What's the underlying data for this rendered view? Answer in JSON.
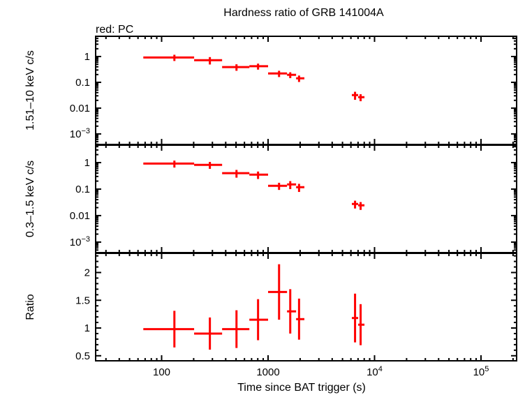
{
  "chart_data": {
    "type": "scatter",
    "title": "Hardness ratio of GRB 141004A",
    "subtitle": "red: PC",
    "xlabel": "Time since BAT trigger (s)",
    "xscale": "log",
    "xlim": [
      24,
      216000
    ],
    "xticks": [
      {
        "v": 100,
        "label": "100"
      },
      {
        "v": 1000,
        "label": "1000"
      },
      {
        "v": 10000,
        "label": "10",
        "exp": "4"
      },
      {
        "v": 100000,
        "label": "10",
        "exp": "5"
      }
    ],
    "color": "#ff0000",
    "grid": false,
    "x": [
      131.8,
      284,
      505,
      805,
      1268,
      1615,
      1954,
      6560,
      7400
    ],
    "xerr_low": [
      67.3,
      202,
      370,
      667,
      1000,
      1507,
      1833,
      6120,
      7020
    ],
    "xerr_high": [
      202,
      370,
      667,
      1000,
      1507,
      1833,
      2193,
      7020,
      8040
    ],
    "panels": [
      {
        "ylabel": "1.51–10 keV c/s",
        "yscale": "log",
        "ylim": [
          0.00039,
          6.08
        ],
        "yticks": [
          {
            "v": 1,
            "label": "1"
          },
          {
            "v": 0.1,
            "label": "0.1"
          },
          {
            "v": 0.01,
            "label": "0.01"
          },
          {
            "v": 0.001,
            "label": "10",
            "exp": "−3"
          }
        ],
        "y": [
          0.92,
          0.72,
          0.39,
          0.42,
          0.22,
          0.195,
          0.143,
          0.032,
          0.0265
        ],
        "yerr": [
          0.25,
          0.23,
          0.11,
          0.11,
          0.06,
          0.05,
          0.04,
          0.011,
          0.008
        ]
      },
      {
        "ylabel": "0.3–1.5 keV c/s",
        "yscale": "log",
        "ylim": [
          0.0004,
          4.55
        ],
        "yticks": [
          {
            "v": 1,
            "label": "1"
          },
          {
            "v": 0.1,
            "label": "0.1"
          },
          {
            "v": 0.01,
            "label": "0.01"
          },
          {
            "v": 0.001,
            "label": "10",
            "exp": "−3"
          }
        ],
        "y": [
          0.92,
          0.82,
          0.4,
          0.35,
          0.133,
          0.15,
          0.118,
          0.0275,
          0.0244
        ],
        "yerr": [
          0.27,
          0.24,
          0.13,
          0.11,
          0.04,
          0.05,
          0.04,
          0.009,
          0.008
        ]
      },
      {
        "ylabel": "Ratio",
        "yscale": "linear",
        "ylim": [
          0.409,
          2.346
        ],
        "yticks": [
          {
            "v": 0.5,
            "label": "0.5"
          },
          {
            "v": 1,
            "label": "1"
          },
          {
            "v": 1.5,
            "label": "1.5"
          },
          {
            "v": 2,
            "label": "2"
          }
        ],
        "y": [
          0.98,
          0.9,
          0.98,
          1.15,
          1.65,
          1.3,
          1.16,
          1.18,
          1.06
        ],
        "yerr": [
          0.33,
          0.29,
          0.34,
          0.37,
          0.5,
          0.4,
          0.37,
          0.44,
          0.37
        ]
      }
    ]
  }
}
